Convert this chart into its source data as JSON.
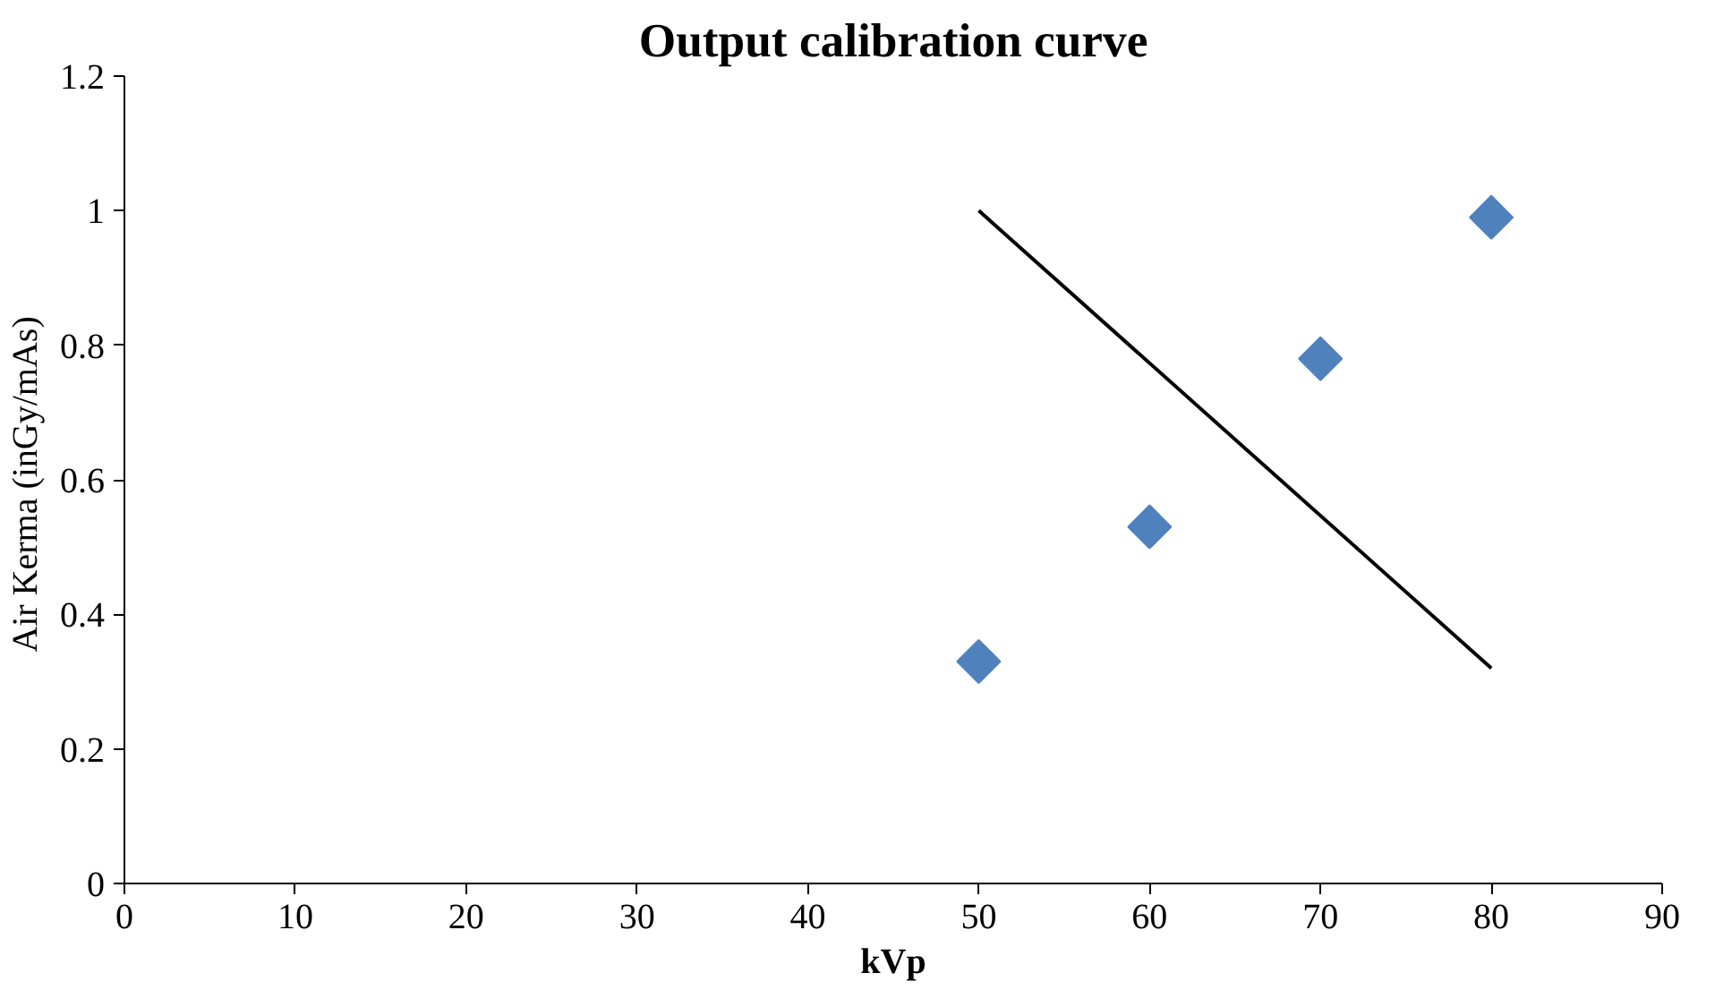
{
  "chart_data": {
    "type": "scatter",
    "title": "Output calibration curve",
    "xlabel": "kVp",
    "ylabel": "Air Kerma  (inGy/mAs)",
    "x": [
      50,
      60,
      70,
      80
    ],
    "series": [
      {
        "color": "#4f81bd",
        "values": [
          0.33,
          0.53,
          0.78,
          0.99
        ],
        "marker": "diamond"
      },
      {
        "type": "line",
        "color": "#000000",
        "x": [
          50,
          80
        ],
        "values": [
          1.0,
          0.32
        ],
        "marker": "none"
      }
    ],
    "xlim": [
      0,
      90
    ],
    "xticks": [
      0,
      10,
      20,
      30,
      40,
      50,
      60,
      70,
      80,
      90
    ],
    "ylim": [
      0,
      1.2
    ],
    "yticks": [
      0,
      0.2,
      0.4,
      0.6,
      0.8,
      1,
      1.2
    ],
    "grid": false
  }
}
